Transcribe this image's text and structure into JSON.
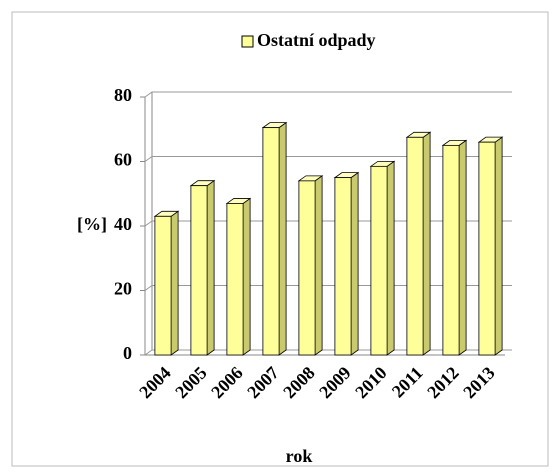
{
  "chart_data": {
    "type": "bar3d",
    "categories": [
      "2004",
      "2005",
      "2006",
      "2007",
      "2008",
      "2009",
      "2010",
      "2011",
      "2012",
      "2013"
    ],
    "series": [
      {
        "name": "Ostatní odpady",
        "color": "#ffff99",
        "values": [
          43,
          52.5,
          47,
          70.5,
          54,
          55,
          58.5,
          67.5,
          65,
          66
        ]
      }
    ],
    "ylim": [
      0,
      80
    ],
    "yticks": [
      0,
      20,
      40,
      60,
      80
    ],
    "grid": true,
    "xlabel": "rok",
    "ylabel": "[%]",
    "legend": "top"
  }
}
